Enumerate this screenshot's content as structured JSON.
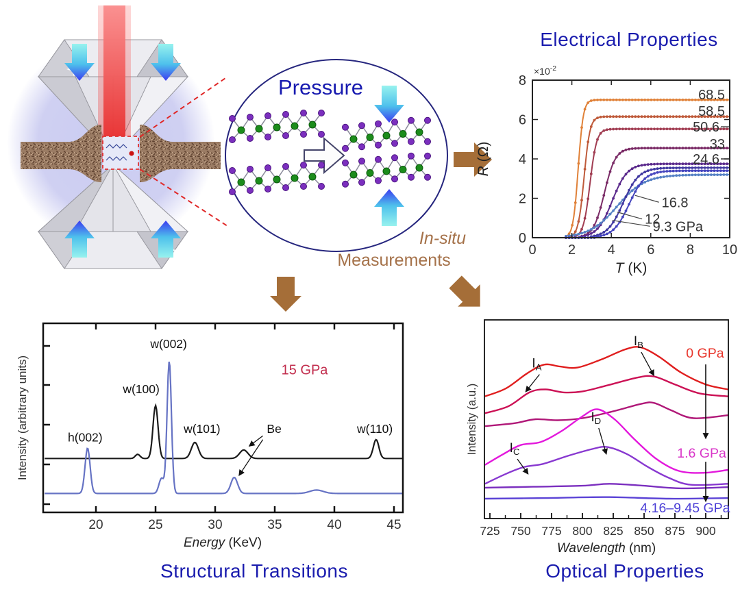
{
  "headings": {
    "electrical": "Electrical Properties",
    "structural": "Structural Transitions",
    "optical": "Optical Properties"
  },
  "schematic": {
    "pressure": "Pressure",
    "insitu": "In-situ",
    "measurements": "Measurements"
  },
  "chart_data": [
    {
      "id": "electrical",
      "type": "line",
      "title": "Electrical Properties",
      "xlabel": "T (K)",
      "ylabel": "R (Ω)",
      "scale_note_base": "×10",
      "scale_note_exp": "-2",
      "xlim": [
        0,
        10
      ],
      "ylim": [
        0,
        8
      ],
      "xticks": [
        0,
        2,
        4,
        6,
        8,
        10
      ],
      "yticks": [
        0,
        2,
        4,
        6,
        8
      ],
      "series": [
        {
          "label": "68.5",
          "pressure_gpa": 68.5,
          "color": "#E08138",
          "tc": 2.32,
          "w": 0.13,
          "plateau": 7.0
        },
        {
          "label": "58.5",
          "pressure_gpa": 58.5,
          "color": "#BF5B3B",
          "tc": 2.62,
          "w": 0.15,
          "plateau": 6.15
        },
        {
          "label": "50.6",
          "pressure_gpa": 50.6,
          "color": "#A13D52",
          "tc": 2.92,
          "w": 0.17,
          "plateau": 5.52
        },
        {
          "label": "33",
          "pressure_gpa": 33,
          "color": "#7A2B66",
          "tc": 3.65,
          "w": 0.28,
          "plateau": 4.55
        },
        {
          "label": "24.6",
          "pressure_gpa": 24.6,
          "color": "#5B2A8C",
          "tc": 4.05,
          "w": 0.38,
          "plateau": 3.75
        },
        {
          "label": "16.8",
          "pressure_gpa": 16.8,
          "color": "#5581C4",
          "tc": 4.3,
          "w": 0.7,
          "plateau": 3.2
        },
        {
          "label": "12",
          "pressure_gpa": 12,
          "color": "#4038A0",
          "tc": 4.6,
          "w": 0.4,
          "plateau": 3.55
        },
        {
          "label": "9.3 GPa",
          "pressure_gpa": 9.3,
          "color": "#4545BE",
          "tc": 4.9,
          "w": 0.4,
          "plateau": 3.4
        }
      ],
      "right_labels": [
        {
          "text": "68.5",
          "y": 7.27,
          "dash": false
        },
        {
          "text": "58.5",
          "y": 6.43,
          "dash": false
        },
        {
          "text": "50.6",
          "y": 5.63,
          "dash": true
        },
        {
          "text": "33",
          "y": 4.77,
          "dash": false
        },
        {
          "text": "24.6",
          "y": 4.0,
          "dash": true
        }
      ],
      "leader_labels": [
        {
          "text": "16.8",
          "tx": 6.55,
          "ty": 1.8,
          "px": 5.2,
          "py": 2.15
        },
        {
          "text": "12",
          "tx": 5.7,
          "ty": 0.95,
          "px": 4.3,
          "py": 1.3
        },
        {
          "text": "9.3 GPa",
          "tx": 6.1,
          "ty": 0.58,
          "px": 4.05,
          "py": 0.88
        }
      ]
    },
    {
      "id": "structural",
      "type": "line",
      "title": "Structural Transitions",
      "xlabel": "Energy (KeV)",
      "ylabel": "Intensity (arbitrary units)",
      "xlim": [
        15.6,
        45.8
      ],
      "xticks": [
        20,
        25,
        30,
        35,
        40,
        45
      ],
      "pressure_note": {
        "text": "15 GPa",
        "color": "#C22E4E",
        "x": 37.5,
        "y": 0.73
      },
      "series": [
        {
          "name": "pattern-15GPa-black",
          "color": "#1b1b1b",
          "baseline": 0.285,
          "peaks": [
            [
              23.5,
              0.022,
              0.28
            ],
            [
              25.0,
              0.28,
              0.3
            ],
            [
              28.3,
              0.085,
              0.42
            ],
            [
              32.4,
              0.045,
              0.5
            ],
            [
              43.5,
              0.1,
              0.33
            ]
          ]
        },
        {
          "name": "pattern-blue",
          "color": "#6673C4",
          "baseline": 0.1,
          "peaks": [
            [
              19.3,
              0.24,
              0.3
            ],
            [
              25.5,
              0.08,
              0.3
            ],
            [
              26.15,
              0.7,
              0.26
            ],
            [
              31.6,
              0.085,
              0.4
            ],
            [
              38.5,
              0.018,
              0.8
            ]
          ]
        }
      ],
      "peak_labels": [
        {
          "text": "h(002)",
          "x": 19.1,
          "y": 0.375
        },
        {
          "text": "w(100)",
          "x": 23.8,
          "y": 0.63
        },
        {
          "text": "w(002)",
          "x": 26.1,
          "y": 0.87
        },
        {
          "text": "w(101)",
          "x": 28.9,
          "y": 0.42
        },
        {
          "text": "Be",
          "x": 34.95,
          "y": 0.42
        },
        {
          "text": "w(110)",
          "x": 43.4,
          "y": 0.42
        }
      ],
      "be_arrows": [
        {
          "x1": 34.0,
          "y1": 0.405,
          "x2": 32.85,
          "y2": 0.35
        },
        {
          "x1": 34.0,
          "y1": 0.385,
          "x2": 32.0,
          "y2": 0.195
        }
      ]
    },
    {
      "id": "optical",
      "type": "line",
      "title": "Optical Properties",
      "xlabel": "Wavelength (nm)",
      "ylabel": "Intensity (a.u.)",
      "xlim": [
        721,
        918
      ],
      "xticks": [
        725,
        750,
        775,
        800,
        825,
        850,
        875,
        900
      ],
      "series": [
        {
          "name": "0 GPa",
          "color": "#E01E1E",
          "points": [
            [
              721,
              0.615
            ],
            [
              738,
              0.655
            ],
            [
              755,
              0.73
            ],
            [
              769,
              0.775
            ],
            [
              782,
              0.765
            ],
            [
              796,
              0.76
            ],
            [
              815,
              0.8
            ],
            [
              835,
              0.852
            ],
            [
              847,
              0.862
            ],
            [
              862,
              0.815
            ],
            [
              880,
              0.735
            ],
            [
              900,
              0.675
            ],
            [
              918,
              0.65
            ]
          ]
        },
        {
          "name": "curve-2",
          "color": "#CC1155",
          "points": [
            [
              721,
              0.53
            ],
            [
              740,
              0.565
            ],
            [
              757,
              0.635
            ],
            [
              770,
              0.65
            ],
            [
              785,
              0.635
            ],
            [
              800,
              0.64
            ],
            [
              820,
              0.67
            ],
            [
              845,
              0.71
            ],
            [
              858,
              0.715
            ],
            [
              875,
              0.675
            ],
            [
              895,
              0.63
            ],
            [
              918,
              0.615
            ]
          ]
        },
        {
          "name": "curve-3",
          "color": "#B01878",
          "points": [
            [
              721,
              0.465
            ],
            [
              745,
              0.48
            ],
            [
              762,
              0.5
            ],
            [
              780,
              0.495
            ],
            [
              800,
              0.505
            ],
            [
              825,
              0.54
            ],
            [
              848,
              0.578
            ],
            [
              858,
              0.582
            ],
            [
              872,
              0.545
            ],
            [
              890,
              0.505
            ],
            [
              918,
              0.52
            ]
          ]
        },
        {
          "name": "1.6 GPa",
          "color": "#E318DC",
          "points": [
            [
              721,
              0.27
            ],
            [
              736,
              0.325
            ],
            [
              750,
              0.37
            ],
            [
              766,
              0.385
            ],
            [
              783,
              0.44
            ],
            [
              799,
              0.51
            ],
            [
              812,
              0.55
            ],
            [
              826,
              0.5
            ],
            [
              842,
              0.4
            ],
            [
              860,
              0.3
            ],
            [
              878,
              0.24
            ],
            [
              898,
              0.23
            ],
            [
              918,
              0.245
            ]
          ]
        },
        {
          "name": "curve-5",
          "color": "#8838D0",
          "points": [
            [
              721,
              0.175
            ],
            [
              738,
              0.225
            ],
            [
              753,
              0.26
            ],
            [
              768,
              0.275
            ],
            [
              788,
              0.315
            ],
            [
              808,
              0.35
            ],
            [
              820,
              0.36
            ],
            [
              836,
              0.325
            ],
            [
              853,
              0.26
            ],
            [
              870,
              0.205
            ],
            [
              888,
              0.17
            ],
            [
              918,
              0.175
            ]
          ]
        },
        {
          "name": "curve-6",
          "color": "#7B2FBF",
          "points": [
            [
              721,
              0.155
            ],
            [
              760,
              0.16
            ],
            [
              800,
              0.165
            ],
            [
              822,
              0.175
            ],
            [
              850,
              0.165
            ],
            [
              880,
              0.152
            ],
            [
              918,
              0.158
            ]
          ]
        },
        {
          "name": "4.16-9.45 GPa",
          "color": "#5B43D6",
          "points": [
            [
              721,
              0.1
            ],
            [
              770,
              0.103
            ],
            [
              820,
              0.108
            ],
            [
              870,
              0.1
            ],
            [
              918,
              0.103
            ]
          ]
        }
      ],
      "labels": [
        {
          "base": "I",
          "sub": "A",
          "x": 763,
          "y": 0.76,
          "ax": 754,
          "ay": 0.638
        },
        {
          "base": "I",
          "sub": "B",
          "x": 845.5,
          "y": 0.872,
          "ax": 858,
          "ay": 0.72
        },
        {
          "base": "I",
          "sub": "C",
          "x": 745,
          "y": 0.334,
          "ax": 756,
          "ay": 0.224
        },
        {
          "base": "I",
          "sub": "D",
          "x": 811,
          "y": 0.49,
          "ax": 819.4,
          "ay": 0.324
        }
      ],
      "pressure_labels": [
        {
          "text": "0 GPa",
          "color": "#E8342A",
          "x": 899.4,
          "y": 0.835
        },
        {
          "text": "1.6 GPa",
          "color": "#D935C8",
          "x": 896.7,
          "y": 0.331
        },
        {
          "text": "4.16–9.45 GPa",
          "color": "#4B3FD6",
          "x": 883.3,
          "y": 0.055
        }
      ],
      "arrows": [
        {
          "x": 900,
          "y1": 0.776,
          "y2": 0.403
        },
        {
          "x": 900,
          "y1": 0.286,
          "y2": 0.086
        }
      ]
    }
  ]
}
